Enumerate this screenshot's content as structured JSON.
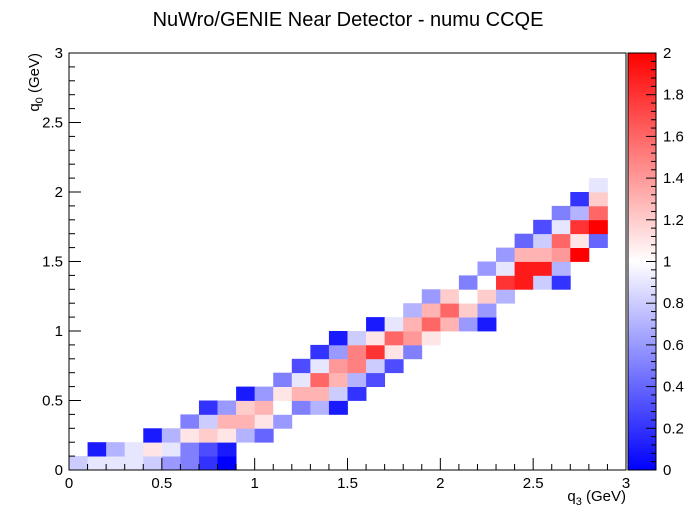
{
  "chart_data": {
    "type": "heatmap",
    "title": "NuWro/GENIE Near Detector - numu CCQE",
    "xlabel": "q_{3} (GeV)",
    "ylabel": "q_{0} (GeV)",
    "xlabel_main": "q",
    "xlabel_sub": "3",
    "xlabel_unit": " (GeV)",
    "ylabel_main": "q",
    "ylabel_sub": "0",
    "ylabel_unit": " (GeV)",
    "xlim": [
      0,
      3
    ],
    "ylim": [
      0,
      3
    ],
    "zlim": [
      0,
      2
    ],
    "nbins_x": 30,
    "nbins_y": 30,
    "bin_width": 0.1,
    "x_ticks": [
      "0",
      "0.5",
      "1",
      "1.5",
      "2",
      "2.5",
      "3"
    ],
    "y_ticks": [
      "0",
      "0.5",
      "1",
      "1.5",
      "2",
      "2.5",
      "3"
    ],
    "z_ticks": [
      "0",
      "0.2",
      "0.4",
      "0.6",
      "0.8",
      "1",
      "1.2",
      "1.4",
      "1.6",
      "1.8",
      "2"
    ],
    "colormap": {
      "low": "#0000ff",
      "mid": "#ffffff",
      "high": "#ff0000"
    },
    "cells": [
      [
        0,
        0,
        0.8
      ],
      [
        1,
        0,
        0.9
      ],
      [
        2,
        0,
        0.9
      ],
      [
        3,
        0,
        0.9
      ],
      [
        4,
        0,
        0.8
      ],
      [
        5,
        0,
        0.6
      ],
      [
        6,
        0,
        0.5
      ],
      [
        7,
        0,
        0.2
      ],
      [
        8,
        0,
        0.0
      ],
      [
        1,
        1,
        0.1
      ],
      [
        2,
        1,
        0.7
      ],
      [
        3,
        1,
        0.9
      ],
      [
        4,
        1,
        1.1
      ],
      [
        5,
        1,
        0.9
      ],
      [
        6,
        1,
        0.5
      ],
      [
        7,
        1,
        0.3
      ],
      [
        8,
        1,
        0.1
      ],
      [
        4,
        2,
        0.1
      ],
      [
        5,
        2,
        0.7
      ],
      [
        6,
        2,
        1.1
      ],
      [
        7,
        2,
        1.2
      ],
      [
        8,
        2,
        1.1
      ],
      [
        9,
        2,
        0.7
      ],
      [
        10,
        2,
        0.4
      ],
      [
        6,
        3,
        0.5
      ],
      [
        7,
        3,
        0.8
      ],
      [
        8,
        3,
        1.3
      ],
      [
        9,
        3,
        1.3
      ],
      [
        10,
        3,
        1.1
      ],
      [
        11,
        3,
        0.6
      ],
      [
        7,
        4,
        0.2
      ],
      [
        8,
        4,
        0.6
      ],
      [
        9,
        4,
        1.2
      ],
      [
        10,
        4,
        1.3
      ],
      [
        11,
        4,
        1.0
      ],
      [
        12,
        4,
        0.5
      ],
      [
        13,
        4,
        0.7
      ],
      [
        14,
        4,
        0.1
      ],
      [
        9,
        5,
        0.1
      ],
      [
        10,
        5,
        0.6
      ],
      [
        11,
        5,
        1.1
      ],
      [
        12,
        5,
        1.3
      ],
      [
        13,
        5,
        1.3
      ],
      [
        14,
        5,
        0.8
      ],
      [
        15,
        5,
        0.2
      ],
      [
        11,
        6,
        0.5
      ],
      [
        12,
        6,
        0.9
      ],
      [
        13,
        6,
        1.6
      ],
      [
        14,
        6,
        1.3
      ],
      [
        15,
        6,
        0.7
      ],
      [
        16,
        6,
        0.3
      ],
      [
        12,
        7,
        0.3
      ],
      [
        13,
        7,
        0.9
      ],
      [
        14,
        7,
        1.4
      ],
      [
        15,
        7,
        1.5
      ],
      [
        16,
        7,
        0.8
      ],
      [
        17,
        7,
        0.3
      ],
      [
        13,
        8,
        0.2
      ],
      [
        14,
        8,
        0.6
      ],
      [
        15,
        8,
        1.5
      ],
      [
        16,
        8,
        1.8
      ],
      [
        17,
        8,
        1.1
      ],
      [
        18,
        8,
        0.5
      ],
      [
        14,
        9,
        0.1
      ],
      [
        15,
        9,
        0.8
      ],
      [
        16,
        9,
        1.1
      ],
      [
        17,
        9,
        1.6
      ],
      [
        18,
        9,
        1.4
      ],
      [
        19,
        9,
        1.1
      ],
      [
        16,
        10,
        0.1
      ],
      [
        17,
        10,
        0.9
      ],
      [
        18,
        10,
        1.3
      ],
      [
        19,
        10,
        1.6
      ],
      [
        20,
        10,
        1.3
      ],
      [
        21,
        10,
        0.6
      ],
      [
        22,
        10,
        0.1
      ],
      [
        18,
        11,
        0.7
      ],
      [
        19,
        11,
        1.3
      ],
      [
        20,
        11,
        1.6
      ],
      [
        21,
        11,
        1.2
      ],
      [
        22,
        11,
        0.6
      ],
      [
        19,
        12,
        0.6
      ],
      [
        20,
        12,
        1.2
      ],
      [
        21,
        12,
        1.0
      ],
      [
        22,
        12,
        1.2
      ],
      [
        23,
        12,
        0.7
      ],
      [
        21,
        13,
        0.5
      ],
      [
        22,
        13,
        1.0
      ],
      [
        23,
        13,
        1.8
      ],
      [
        24,
        13,
        1.9
      ],
      [
        25,
        13,
        0.8
      ],
      [
        26,
        13,
        0.2
      ],
      [
        22,
        14,
        0.6
      ],
      [
        23,
        14,
        0.9
      ],
      [
        24,
        14,
        1.9
      ],
      [
        25,
        14,
        1.9
      ],
      [
        26,
        14,
        0.7
      ],
      [
        23,
        15,
        0.6
      ],
      [
        24,
        15,
        1.3
      ],
      [
        25,
        15,
        1.3
      ],
      [
        26,
        15,
        1.4
      ],
      [
        27,
        15,
        2.0
      ],
      [
        24,
        16,
        0.4
      ],
      [
        25,
        16,
        0.8
      ],
      [
        26,
        16,
        1.6
      ],
      [
        27,
        16,
        1.1
      ],
      [
        28,
        16,
        0.4
      ],
      [
        25,
        17,
        0.3
      ],
      [
        26,
        17,
        0.9
      ],
      [
        27,
        17,
        1.8
      ],
      [
        28,
        17,
        2.0
      ],
      [
        26,
        18,
        0.5
      ],
      [
        27,
        18,
        0.7
      ],
      [
        28,
        18,
        1.6
      ],
      [
        27,
        19,
        0.2
      ],
      [
        28,
        19,
        1.2
      ],
      [
        28,
        20,
        0.9
      ]
    ]
  }
}
